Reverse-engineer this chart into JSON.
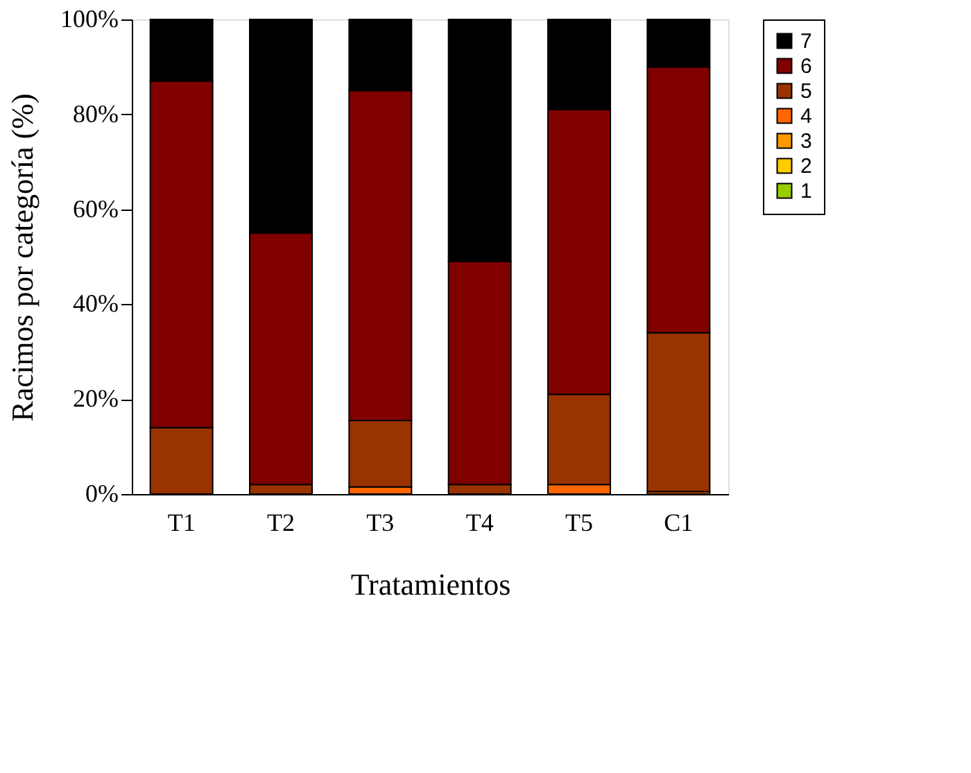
{
  "chart_data": {
    "type": "bar",
    "stacked": true,
    "xlabel": "Tratamientos",
    "ylabel": "Racimos por categoría (%)",
    "categories": [
      "T1",
      "T2",
      "T3",
      "T4",
      "T5",
      "C1"
    ],
    "series": [
      {
        "name": "1",
        "color": "#99cc00",
        "values": [
          0,
          0,
          0,
          0,
          0,
          0
        ]
      },
      {
        "name": "2",
        "color": "#ffcc00",
        "values": [
          0,
          0,
          0,
          0,
          0,
          0
        ]
      },
      {
        "name": "3",
        "color": "#ff9900",
        "values": [
          0,
          0,
          0,
          0,
          0,
          0
        ]
      },
      {
        "name": "4",
        "color": "#ff6600",
        "values": [
          0,
          0,
          1.5,
          0,
          2,
          0.5
        ]
      },
      {
        "name": "5",
        "color": "#993300",
        "values": [
          14,
          2,
          14,
          2,
          19,
          33.5
        ]
      },
      {
        "name": "6",
        "color": "#800000",
        "values": [
          73,
          53,
          69.5,
          47,
          60,
          56
        ]
      },
      {
        "name": "7",
        "color": "#000000",
        "values": [
          13,
          45,
          15,
          51,
          19,
          10
        ]
      }
    ],
    "ylim": [
      0,
      100
    ],
    "yticks": [
      {
        "value": 0,
        "label": "0%"
      },
      {
        "value": 20,
        "label": "20%"
      },
      {
        "value": 40,
        "label": "40%"
      },
      {
        "value": 60,
        "label": "60%"
      },
      {
        "value": 80,
        "label": "80%"
      },
      {
        "value": 100,
        "label": "100%"
      }
    ],
    "grid": false,
    "legend": "right"
  }
}
